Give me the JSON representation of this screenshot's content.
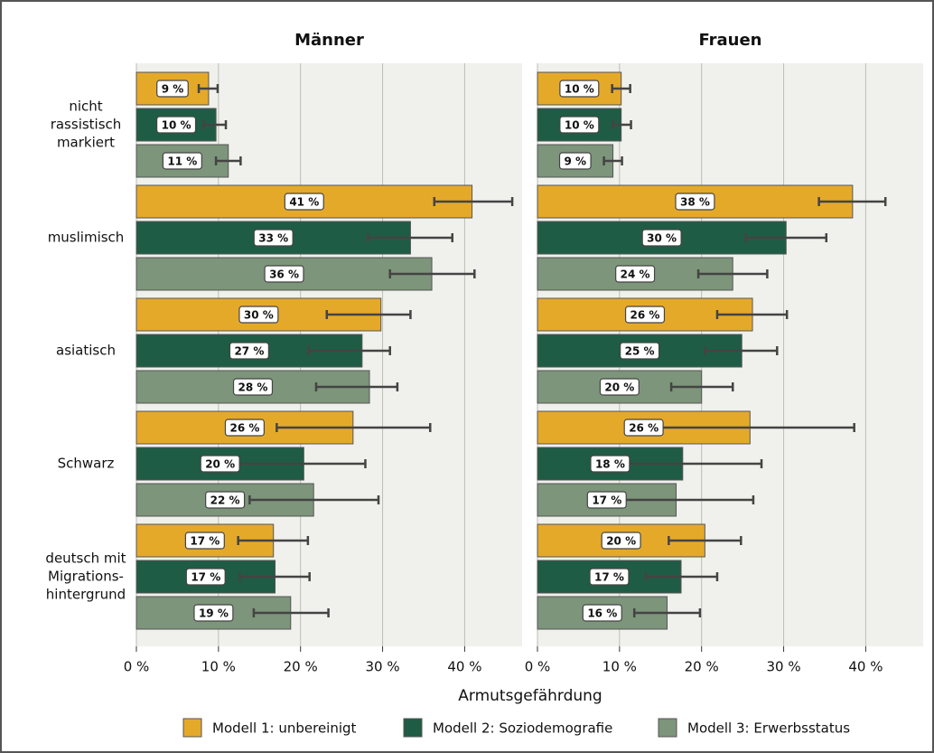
{
  "chart_data": [
    {
      "type": "bar",
      "title": "Männer",
      "xlabel": "Armutsgefährdung",
      "categories": [
        [
          "nicht",
          "rassistisch",
          "markiert"
        ],
        [
          "muslimisch"
        ],
        [
          "asiatisch"
        ],
        [
          "Schwarz"
        ],
        [
          "deutsch mit",
          "Migrations-",
          "hintergrund"
        ]
      ],
      "xlim": [
        0,
        47
      ],
      "xticks": [
        {
          "value": 0,
          "label": "0 %"
        },
        {
          "value": 10,
          "label": "10 %"
        },
        {
          "value": 20,
          "label": "20 %"
        },
        {
          "value": 30,
          "label": "30 %"
        },
        {
          "value": 40,
          "label": "40 %"
        }
      ],
      "grid": true,
      "series": [
        {
          "name": "Modell 1: unbereinigt",
          "color": "#e5a92a",
          "values": [
            8.8,
            40.9,
            29.8,
            26.4,
            16.7
          ],
          "value_labels": [
            "9 %",
            "41 %",
            "30 %",
            "26 %",
            "17 %"
          ],
          "lower": [
            7.6,
            36.3,
            23.2,
            17.1,
            12.4
          ],
          "upper": [
            9.9,
            45.8,
            33.4,
            35.8,
            20.9
          ]
        },
        {
          "name": "Modell 2: Soziodemografie",
          "color": "#1e5c45",
          "values": [
            9.7,
            33.4,
            27.5,
            20.4,
            16.9
          ],
          "value_labels": [
            "10 %",
            "33 %",
            "27 %",
            "20 %",
            "17 %"
          ],
          "lower": [
            8.2,
            28.2,
            21.0,
            12.3,
            12.6
          ],
          "upper": [
            10.9,
            38.5,
            30.9,
            27.9,
            21.1
          ]
        },
        {
          "name": "Modell 3: Erwerbsstatus",
          "color": "#7d957a",
          "values": [
            11.2,
            36.0,
            28.4,
            21.6,
            18.8
          ],
          "value_labels": [
            "11 %",
            "36 %",
            "28 %",
            "22 %",
            "19 %"
          ],
          "lower": [
            9.7,
            30.9,
            21.9,
            13.8,
            14.3
          ],
          "upper": [
            12.7,
            41.2,
            31.8,
            29.5,
            23.4
          ]
        }
      ]
    },
    {
      "type": "bar",
      "title": "Frauen",
      "xlim": [
        0,
        47
      ],
      "xticks": [
        {
          "value": 0,
          "label": "0 %"
        },
        {
          "value": 10,
          "label": "10 %"
        },
        {
          "value": 20,
          "label": "20 %"
        },
        {
          "value": 30,
          "label": "30 %"
        },
        {
          "value": 40,
          "label": "40 %"
        }
      ],
      "grid": true,
      "series": [
        {
          "color": "#e5a92a",
          "values": [
            10.2,
            38.4,
            26.2,
            25.9,
            20.4
          ],
          "value_labels": [
            "10 %",
            "38 %",
            "26 %",
            "26 %",
            "20 %"
          ],
          "lower": [
            9.1,
            34.3,
            21.9,
            12.4,
            16.0
          ],
          "upper": [
            11.3,
            42.4,
            30.4,
            38.6,
            24.8
          ]
        },
        {
          "color": "#1e5c45",
          "values": [
            10.2,
            30.3,
            24.9,
            17.7,
            17.5
          ],
          "value_labels": [
            "10 %",
            "30 %",
            "25 %",
            "18 %",
            "17 %"
          ],
          "lower": [
            9.2,
            25.4,
            20.4,
            8.2,
            13.2
          ],
          "upper": [
            11.4,
            35.2,
            29.2,
            27.3,
            21.9
          ]
        },
        {
          "color": "#7d957a",
          "values": [
            9.2,
            23.8,
            20.0,
            16.9,
            15.8
          ],
          "value_labels": [
            "9 %",
            "24 %",
            "20 %",
            "17 %",
            "16 %"
          ],
          "lower": [
            8.1,
            19.6,
            16.3,
            7.7,
            11.8
          ],
          "upper": [
            10.3,
            28.0,
            23.8,
            26.3,
            19.8
          ]
        }
      ]
    }
  ]
}
